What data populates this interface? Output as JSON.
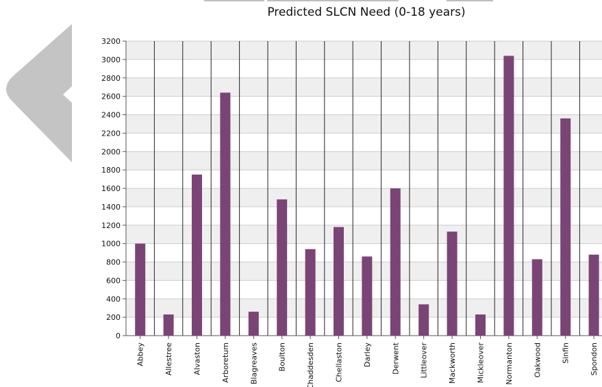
{
  "nav": {
    "icon": "left-arrow-icon"
  },
  "chart_data": {
    "type": "bar",
    "title": "Predicted SLCN Need (0-18 years)",
    "xlabel": "",
    "ylabel": "",
    "categories": [
      "Abbey",
      "Allestree",
      "Alvaston",
      "Arboretum",
      "Blagreaves",
      "Boulton",
      "Chaddesden",
      "Chellaston",
      "Darley",
      "Derwent",
      "Littleover",
      "Mackworth",
      "Mickleover",
      "Normanton",
      "Oakwood",
      "Sinfin",
      "Spondon"
    ],
    "values": [
      1000,
      230,
      1750,
      2640,
      260,
      1480,
      940,
      1180,
      860,
      1600,
      340,
      1130,
      230,
      3040,
      830,
      2360,
      880
    ],
    "ylim": [
      0,
      3200
    ],
    "yticks": [
      0,
      200,
      400,
      600,
      800,
      1000,
      1200,
      1400,
      1600,
      1800,
      2000,
      2200,
      2400,
      2600,
      2800,
      3000,
      3200
    ],
    "grid": true,
    "colors": {
      "bar": "#7b4476",
      "band": "#efefef",
      "gridline": "#cccccc",
      "divider": "#222222"
    }
  }
}
